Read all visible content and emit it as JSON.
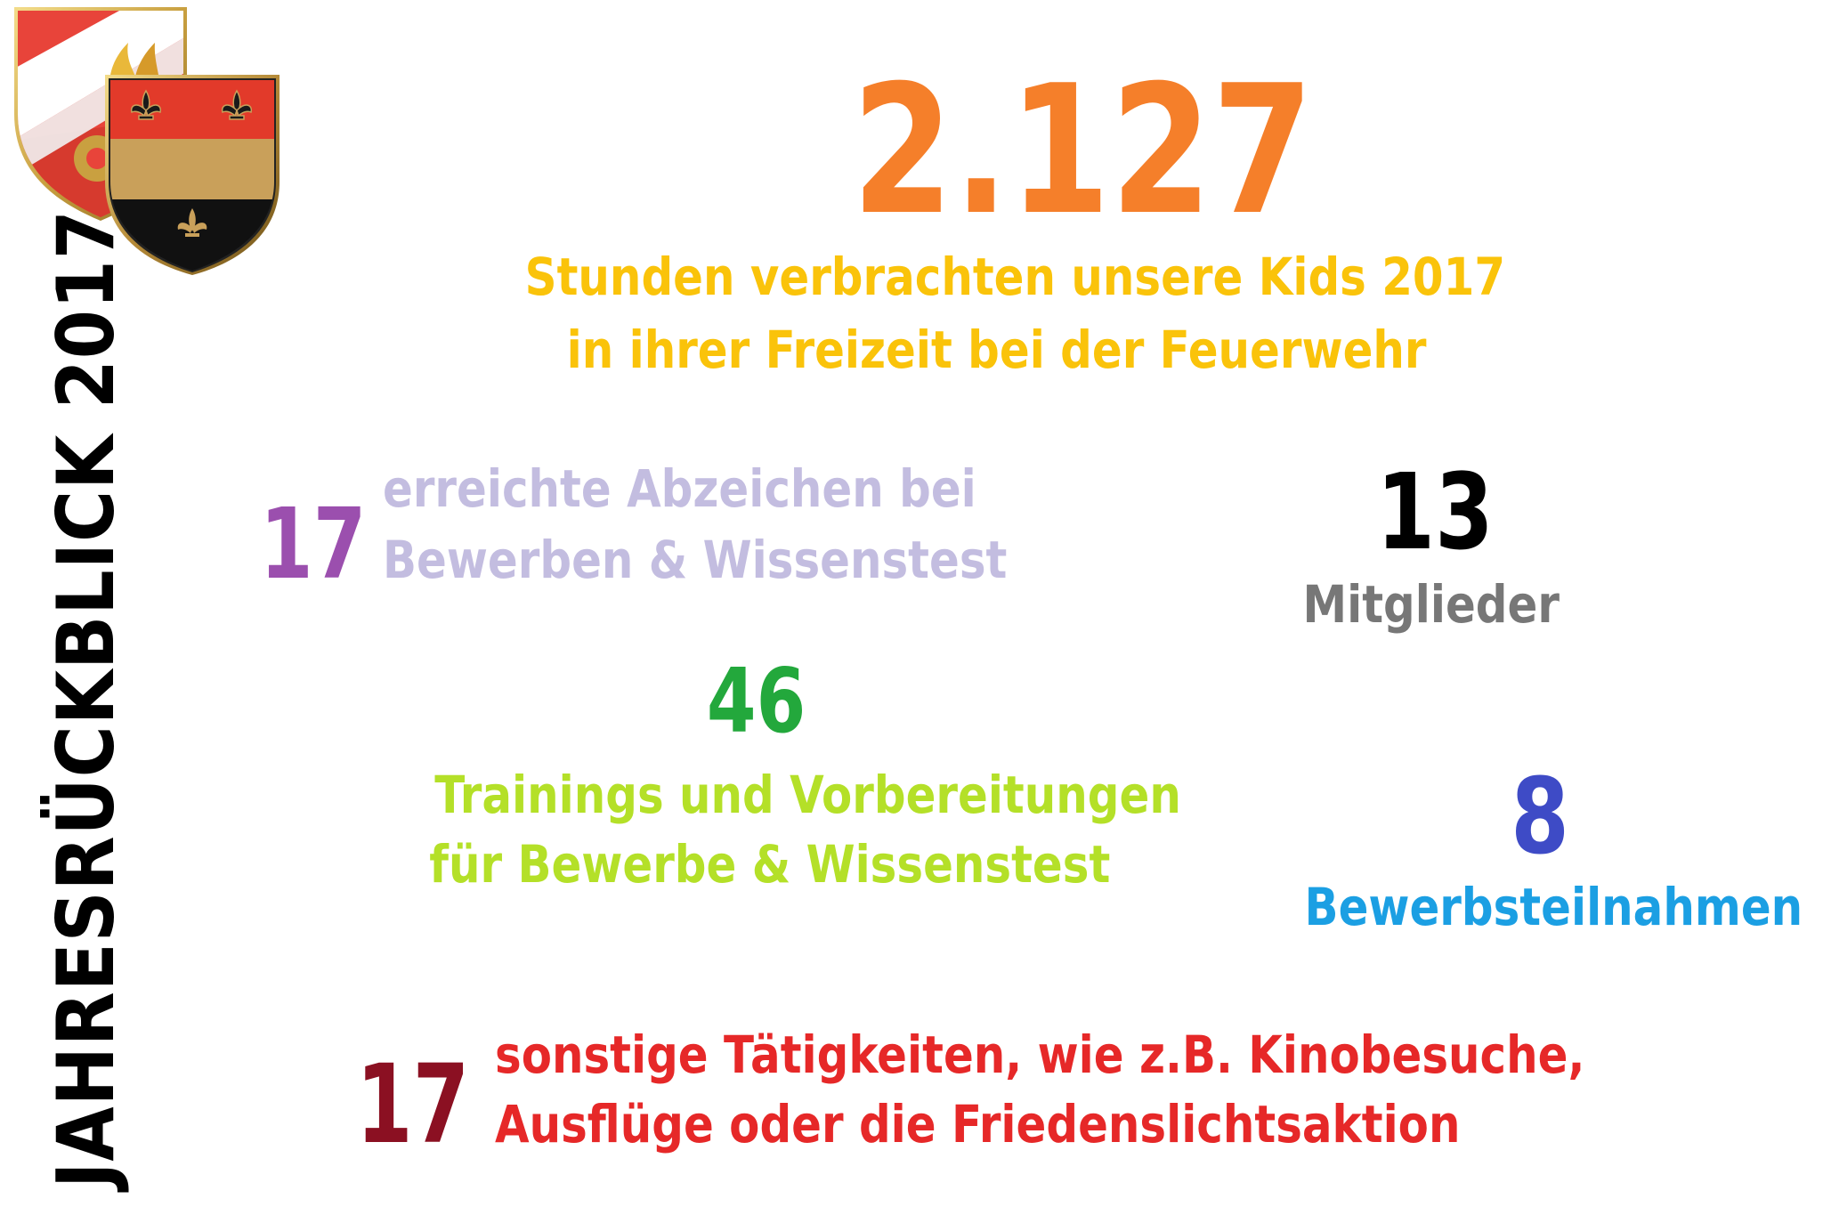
{
  "side_title": "JAHRESRÜCKBLICK 2017",
  "hours": {
    "value": "2.127",
    "line1": "Stunden verbrachten unsere Kids 2017",
    "line2": "in ihrer Freizeit bei der Feuerwehr"
  },
  "badges": {
    "value": "17",
    "line1": "erreichte Abzeichen bei",
    "line2": "Bewerben & Wissenstest"
  },
  "members": {
    "value": "13",
    "label": "Mitglieder"
  },
  "trainings": {
    "value": "46",
    "line1": "Trainings und Vorbereitungen",
    "line2": "für Bewerbe & Wissenstest"
  },
  "competitions": {
    "value": "8",
    "label": "Bewerbsteilnahmen"
  },
  "other": {
    "value": "17",
    "line1": "sonstige Tätigkeiten, wie z.B. Kinobesuche,",
    "line2": "Ausflüge oder die Friedenslichtsaktion"
  },
  "colors": {
    "hours_number": "#f57f2a",
    "hours_text": "#fac30a",
    "badges_number": "#9b4fae",
    "badges_text": "#c3bde0",
    "members_number": "#000000",
    "members_text": "#777777",
    "trainings_number": "#23a83c",
    "trainings_text": "#b4e028",
    "competitions_number": "#3e4bc6",
    "competitions_text": "#1b9fe3",
    "other_number": "#8b1022",
    "other_text": "#e62828",
    "crest_red": "#e23a2a",
    "crest_gold": "#c9a05a",
    "crest_black": "#111111"
  },
  "icons": [
    "fire-brigade-crest-icon",
    "municipal-coat-of-arms-icon"
  ]
}
